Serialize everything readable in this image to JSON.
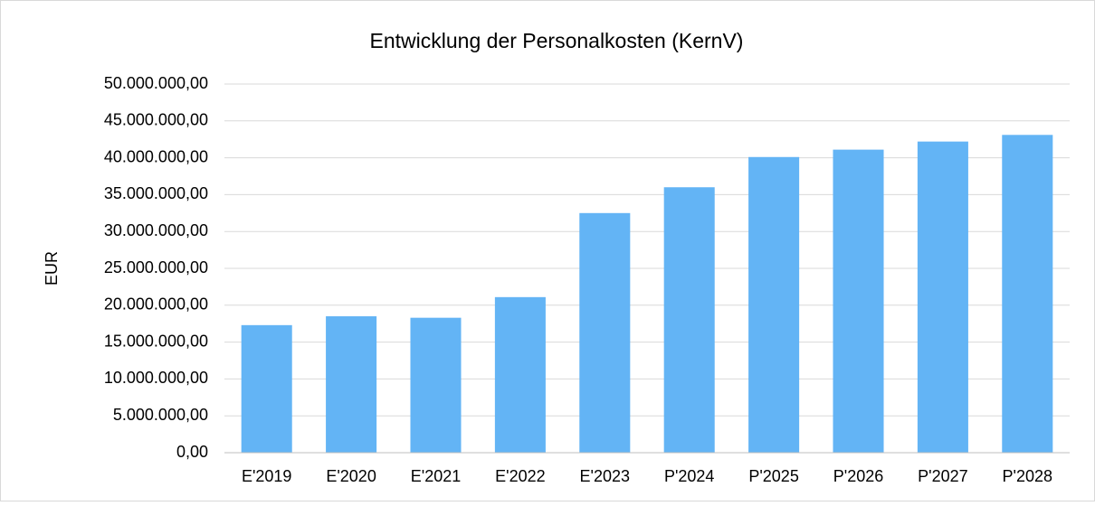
{
  "chart_data": {
    "type": "bar",
    "title": "Entwicklung der Personalkosten (KernV)",
    "y_label": "EUR",
    "categories": [
      "E'2019",
      "E'2020",
      "E'2021",
      "E'2022",
      "E'2023",
      "P'2024",
      "P'2025",
      "P'2026",
      "P'2027",
      "P'2028"
    ],
    "values": [
      17300000,
      18500000,
      18300000,
      21100000,
      32500000,
      36000000,
      40100000,
      41100000,
      42200000,
      43100000
    ],
    "color": "#63b4f5",
    "ylim": [
      0,
      50000000
    ],
    "yticks": [
      {
        "value": 0,
        "label": "0,00"
      },
      {
        "value": 5000000,
        "label": "5.000.000,00"
      },
      {
        "value": 10000000,
        "label": "10.000.000,00"
      },
      {
        "value": 15000000,
        "label": "15.000.000,00"
      },
      {
        "value": 20000000,
        "label": "20.000.000,00"
      },
      {
        "value": 25000000,
        "label": "25.000.000,00"
      },
      {
        "value": 30000000,
        "label": "30.000.000,00"
      },
      {
        "value": 35000000,
        "label": "35.000.000,00"
      },
      {
        "value": 40000000,
        "label": "40.000.000,00"
      },
      {
        "value": 45000000,
        "label": "45.000.000,00"
      },
      {
        "value": 50000000,
        "label": "50.000.000,00"
      }
    ],
    "grid": true
  }
}
